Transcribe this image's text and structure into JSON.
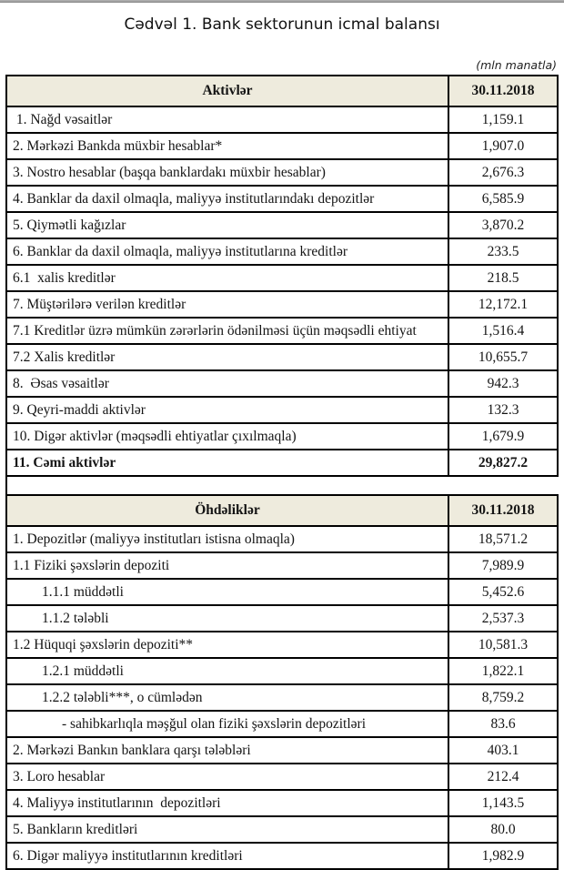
{
  "page": {
    "title": "Cədvəl 1. Bank sektorunun icmal balansı",
    "unit_note": "(mln manatla)"
  },
  "colors": {
    "header_bg": "#eeebdd",
    "border": "#000000",
    "top_bar": "#9c9c9c"
  },
  "tables": [
    {
      "id": "assets",
      "header": {
        "label": "Aktivlər",
        "date": "30.11.2018"
      },
      "rows": [
        {
          "label": " 1. Nağd vəsaitlər",
          "value": "1,159.1"
        },
        {
          "label": "2. Mərkəzi Bankda müxbir hesablar*",
          "value": "1,907.0"
        },
        {
          "label": "3. Nostro hesablar (başqa banklardakı müxbir hesablar)",
          "value": "2,676.3"
        },
        {
          "label": "4. Banklar da daxil olmaqla, maliyyə institutlarındakı depozitlər",
          "value": "6,585.9"
        },
        {
          "label": "5. Qiymətli kağızlar",
          "value": "3,870.2"
        },
        {
          "label": "6. Banklar da daxil olmaqla, maliyyə institutlarına kreditlər",
          "value": "233.5"
        },
        {
          "label": "6.1  xalis kreditlər",
          "value": "218.5"
        },
        {
          "label": "7. Müştərilərə verilən kreditlər",
          "value": "12,172.1"
        },
        {
          "label": "7.1 Kreditlər üzrə mümkün zərərlərin ödənilməsi üçün məqsədli ehtiyat",
          "value": "1,516.4"
        },
        {
          "label": "7.2 Xalis kreditlər",
          "value": "10,655.7"
        },
        {
          "label": "8.  Əsas vəsaitlər",
          "value": "942.3"
        },
        {
          "label": "9. Qeyri-maddi aktivlər",
          "value": "132.3"
        },
        {
          "label": "10. Digər aktivlər (məqsədli ehtiyatlar çıxılmaqla)",
          "value": "1,679.9"
        },
        {
          "label": "11. Cəmi aktivlər",
          "value": "29,827.2",
          "bold": true
        }
      ]
    },
    {
      "id": "liabilities",
      "header": {
        "label": "Öhdəliklər",
        "date": "30.11.2018"
      },
      "rows": [
        {
          "label": "1. Depozitlər (maliyyə institutları istisna olmaqla)",
          "value": "18,571.2"
        },
        {
          "label": "1.1 Fiziki şəxslərin depoziti",
          "value": "7,989.9"
        },
        {
          "label": "1.1.1 müddətli",
          "value": "5,452.6",
          "indent": 1
        },
        {
          "label": "1.1.2 tələbli",
          "value": "2,537.3",
          "indent": 1
        },
        {
          "label": "1.2 Hüquqi şəxslərin depoziti**",
          "value": "10,581.3"
        },
        {
          "label": "1.2.1 müddətli",
          "value": "1,822.1",
          "indent": 1
        },
        {
          "label": "1.2.2 tələbli***, o cümlədən",
          "value": "8,759.2",
          "indent": 1
        },
        {
          "label": "- sahibkarlıqla məşğul olan fiziki şəxslərin depozitləri",
          "value": "83.6",
          "indent": 2
        },
        {
          "label": "2. Mərkəzi Bankın banklara qarşı tələbləri",
          "value": "403.1"
        },
        {
          "label": "3. Loro hesablar",
          "value": "212.4"
        },
        {
          "label": "4. Maliyyə institutlarının  depozitləri",
          "value": "1,143.5"
        },
        {
          "label": "5. Bankların kreditləri",
          "value": "80.0"
        },
        {
          "label": "6. Digər maliyyə institutlarının kreditləri",
          "value": "1,982.9"
        }
      ]
    }
  ]
}
